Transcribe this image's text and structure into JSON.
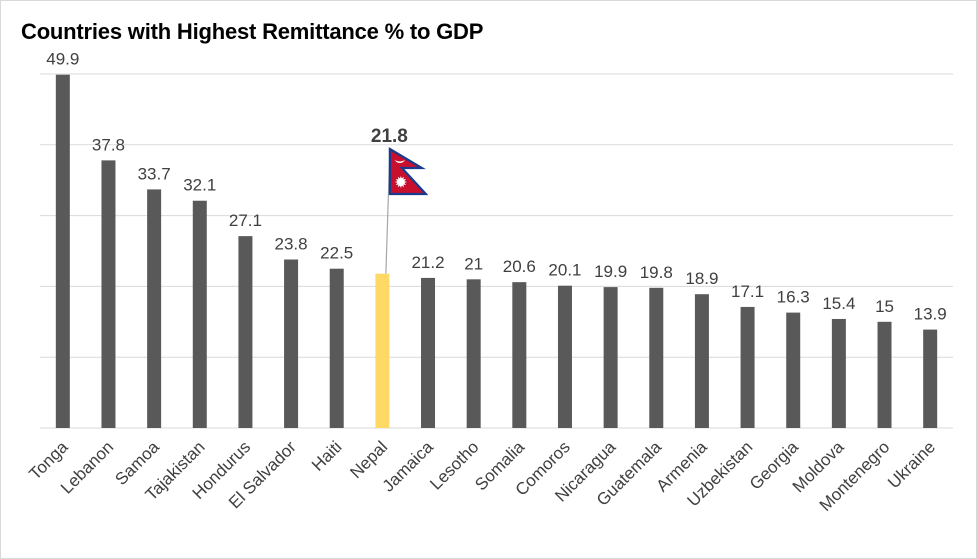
{
  "chart_data": {
    "type": "bar",
    "title": "Countries with Highest Remittance % to GDP",
    "categories": [
      "Tonga",
      "Lebanon",
      "Samoa",
      "Tajakistan",
      "Hondurus",
      "El Salvador",
      "Haiti",
      "Nepal",
      "Jamaica",
      "Lesotho",
      "Somalia",
      "Comoros",
      "Nicaragua",
      "Guatemala",
      "Armenia",
      "Uzbekistan",
      "Georgia",
      "Moldova",
      "Montenegro",
      "Ukraine"
    ],
    "values": [
      49.9,
      37.8,
      33.7,
      32.1,
      27.1,
      23.8,
      22.5,
      21.8,
      21.2,
      21,
      20.6,
      20.1,
      19.9,
      19.8,
      18.9,
      17.1,
      16.3,
      15.4,
      15,
      13.9
    ],
    "value_labels": [
      "49.9",
      "37.8",
      "33.7",
      "32.1",
      "27.1",
      "23.8",
      "22.5",
      "21.8",
      "21.2",
      "21",
      "20.6",
      "20.1",
      "19.9",
      "19.8",
      "18.9",
      "17.1",
      "16.3",
      "15.4",
      "15",
      "13.9"
    ],
    "highlight": {
      "category": "Nepal",
      "color": "#ffd966",
      "label_bold": true,
      "marker": "nepal-flag"
    },
    "bar_color": "#595959",
    "label_color": "#404040",
    "gridline_color": "#d9d9d9",
    "ylim": [
      0,
      50
    ],
    "grid": true,
    "legend": "none"
  }
}
